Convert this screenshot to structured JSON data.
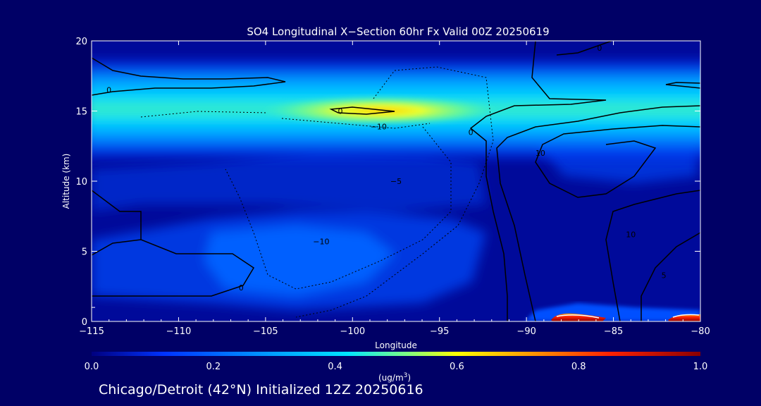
{
  "chart_data": {
    "type": "heatmap",
    "title": "SO4 Longitudinal X−Section 60hr  Fx Valid 00Z 20250619",
    "xlabel": "Longitude",
    "ylabel": "Altitude (km)",
    "xlim": [
      -115,
      -80
    ],
    "ylim": [
      0,
      20
    ],
    "x_ticks": [
      -115,
      -110,
      -105,
      -100,
      -95,
      -90,
      -85,
      -80
    ],
    "x_tick_labels": [
      "−115",
      "−110",
      "−105",
      "−100",
      "−95",
      "−90",
      "−85",
      "−80"
    ],
    "y_ticks": [
      0,
      5,
      10,
      15,
      20
    ],
    "y_tick_labels": [
      "0",
      "5",
      "10",
      "15",
      "20"
    ],
    "colorbar": {
      "min": 0.0,
      "max": 1.0,
      "tick_values": [
        0.0,
        0.2,
        0.4,
        0.6,
        0.8,
        1.0
      ],
      "tick_labels": [
        "0.0",
        "0.2",
        "0.4",
        "0.6",
        "0.8",
        "1.0"
      ],
      "unit_label": "(ug/m",
      "unit_superscript": "3",
      "unit_close": ")",
      "colors": [
        "#000080",
        "#0033ff",
        "#00a0ff",
        "#00e5ff",
        "#80ff80",
        "#ffff00",
        "#ff9900",
        "#ff2200",
        "#8b0000"
      ]
    },
    "field_features": [
      {
        "feature": "stratospheric band",
        "lon_range": [
          -115,
          -80
        ],
        "alt_km": 14.5,
        "peak_value": 0.58,
        "peak_lon": -99
      },
      {
        "feature": "mid-level plume",
        "lon_range": [
          -115,
          -96
        ],
        "alt_km": [
          2,
          9
        ],
        "value": 0.28
      },
      {
        "feature": "surface maximum",
        "lon_range": [
          -89,
          -80
        ],
        "alt_km": 0.3,
        "value": 0.95
      }
    ],
    "contour_labels": [
      {
        "text": "0",
        "lon": -114,
        "alt": 16.5
      },
      {
        "text": "0",
        "lon": -85.8,
        "alt": 19.5
      },
      {
        "text": "0",
        "lon": -100.7,
        "alt": 15.0
      },
      {
        "text": "−10",
        "lon": -98.5,
        "alt": 13.9
      },
      {
        "text": "0",
        "lon": -93.2,
        "alt": 13.5
      },
      {
        "text": "10",
        "lon": -89.2,
        "alt": 12.0
      },
      {
        "text": "−5",
        "lon": -97.5,
        "alt": 10.0
      },
      {
        "text": "−10",
        "lon": -101.8,
        "alt": 5.7
      },
      {
        "text": "10",
        "lon": -84.0,
        "alt": 6.2
      },
      {
        "text": "0",
        "lon": -106.4,
        "alt": 2.4
      },
      {
        "text": "5",
        "lon": -82.1,
        "alt": 3.3
      }
    ]
  },
  "footer": {
    "text": "Chicago/Detroit (42°N) Initialized 12Z 20250616"
  }
}
